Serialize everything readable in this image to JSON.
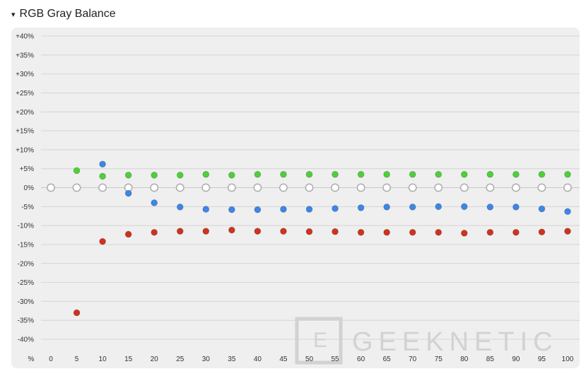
{
  "section": {
    "toggle_glyph": "▾",
    "title": "RGB Gray Balance"
  },
  "watermark": {
    "text": "GEEKNETIC"
  },
  "colors": {
    "green": "#4cd137",
    "blue": "#3d86e8",
    "red": "#d0321c",
    "gray_outline": "#b0b0b0"
  },
  "chart_data": {
    "type": "scatter",
    "title": "RGB Gray Balance",
    "x_unit_label": "%",
    "x": [
      0,
      5,
      10,
      15,
      20,
      25,
      30,
      35,
      40,
      45,
      50,
      55,
      60,
      65,
      70,
      75,
      80,
      85,
      90,
      95,
      100
    ],
    "x_tick_labels": [
      "0",
      "5",
      "10",
      "15",
      "20",
      "25",
      "30",
      "35",
      "40",
      "45",
      "50",
      "55",
      "60",
      "65",
      "70",
      "75",
      "80",
      "85",
      "90",
      "95",
      "100"
    ],
    "y_tick_values": [
      40,
      35,
      30,
      25,
      20,
      15,
      10,
      5,
      0,
      -5,
      -10,
      -15,
      -20,
      -25,
      -30,
      -35,
      -40
    ],
    "y_tick_labels": [
      "+40%",
      "+35%",
      "+30%",
      "+25%",
      "+20%",
      "+15%",
      "+10%",
      "+5%",
      "0%",
      "-5%",
      "-10%",
      "-15%",
      "-20%",
      "-25%",
      "-30%",
      "-35%",
      "-40%"
    ],
    "ylim": [
      -40,
      40
    ],
    "grid": true,
    "series": [
      {
        "color": "green",
        "x": [
          5,
          10,
          15,
          20,
          25,
          30,
          35,
          40,
          45,
          50,
          55,
          60,
          65,
          70,
          75,
          80,
          85,
          90,
          95,
          100
        ],
        "values": [
          4.5,
          3,
          3.3,
          3.3,
          3.3,
          3.5,
          3.3,
          3.5,
          3.5,
          3.5,
          3.5,
          3.5,
          3.5,
          3.5,
          3.5,
          3.5,
          3.5,
          3.5,
          3.5,
          3.5
        ]
      },
      {
        "color": "blue",
        "x": [
          10,
          15,
          20,
          25,
          30,
          35,
          40,
          45,
          50,
          55,
          60,
          65,
          70,
          75,
          80,
          85,
          90,
          95,
          100
        ],
        "values": [
          6.2,
          -1.5,
          -4,
          -5.1,
          -5.7,
          -5.8,
          -5.8,
          -5.7,
          -5.7,
          -5.5,
          -5.3,
          -5.1,
          -5.1,
          -5,
          -5,
          -5.1,
          -5.1,
          -5.6,
          -6.3
        ]
      },
      {
        "color": "red",
        "x": [
          5,
          10,
          15,
          20,
          25,
          30,
          35,
          40,
          45,
          50,
          55,
          60,
          65,
          70,
          75,
          80,
          85,
          90,
          95,
          100
        ],
        "values": [
          -33,
          -14.2,
          -12.3,
          -11.8,
          -11.5,
          -11.5,
          -11.2,
          -11.5,
          -11.5,
          -11.6,
          -11.6,
          -11.8,
          -11.8,
          -11.8,
          -11.8,
          -12,
          -11.8,
          -11.8,
          -11.7,
          -11.5
        ]
      },
      {
        "color": "gray",
        "hollow": true,
        "x": [
          0,
          5,
          10,
          15,
          20,
          25,
          30,
          35,
          40,
          45,
          50,
          55,
          60,
          65,
          70,
          75,
          80,
          85,
          90,
          95,
          100
        ],
        "values": [
          0,
          0,
          0,
          0,
          0,
          0,
          0,
          0,
          0,
          0,
          0,
          0,
          0,
          0,
          0,
          0,
          0,
          0,
          0,
          0,
          0
        ]
      }
    ]
  }
}
